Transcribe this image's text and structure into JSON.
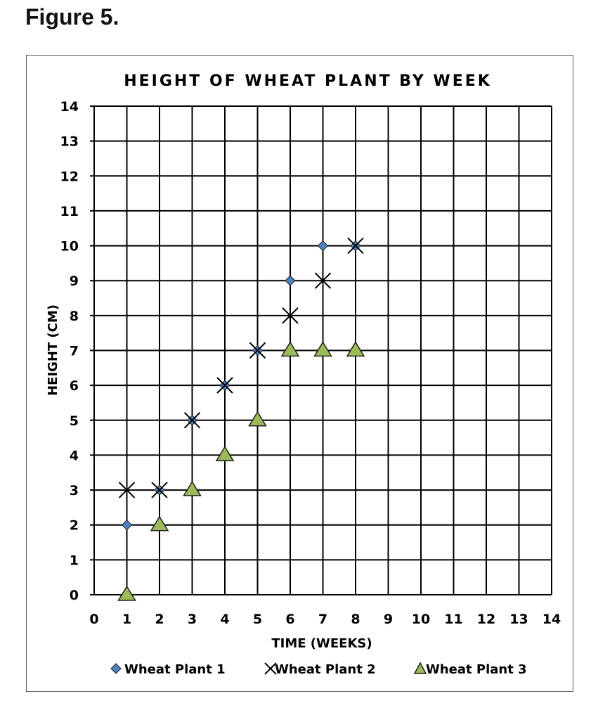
{
  "figure_label": "Figure 5.",
  "chart_data": {
    "type": "scatter",
    "title": "HEIGHT OF WHEAT PLANT BY WEEK",
    "xlabel": "TIME (WEEKS)",
    "ylabel": "HEIGHT (CM)",
    "xlim": [
      0,
      14
    ],
    "ylim": [
      0,
      14
    ],
    "xticks": [
      "0",
      "1",
      "2",
      "3",
      "4",
      "5",
      "6",
      "7",
      "8",
      "9",
      "10",
      "11",
      "12",
      "13",
      "14"
    ],
    "yticks": [
      "0",
      "1",
      "2",
      "3",
      "4",
      "5",
      "6",
      "7",
      "8",
      "9",
      "10",
      "11",
      "12",
      "13",
      "14"
    ],
    "grid": true,
    "legend_position": "bottom",
    "series": [
      {
        "name": "Wheat Plant 1",
        "marker": "diamond",
        "color": "#4F81BD",
        "x": [
          1,
          2,
          3,
          4,
          5,
          6,
          7,
          8
        ],
        "y": [
          2,
          3,
          5,
          6,
          7,
          9,
          10,
          10
        ]
      },
      {
        "name": "Wheat Plant 2",
        "marker": "x",
        "color": "#000000",
        "x": [
          1,
          2,
          3,
          4,
          5,
          6,
          7,
          8
        ],
        "y": [
          3,
          3,
          5,
          6,
          7,
          8,
          9,
          10
        ]
      },
      {
        "name": "Wheat Plant 3",
        "marker": "triangle",
        "color": "#9BBB59",
        "x": [
          1,
          2,
          3,
          4,
          5,
          6,
          7,
          8
        ],
        "y": [
          0,
          2,
          3,
          4,
          5,
          7,
          7,
          7
        ]
      }
    ]
  }
}
